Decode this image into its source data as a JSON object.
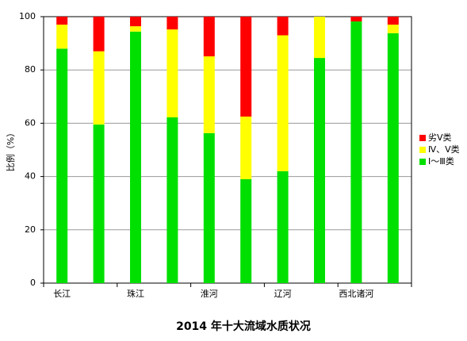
{
  "chart_data": {
    "type": "stacked_bar",
    "title": "2014 年十大流域水质状况",
    "y_label": "比例（%）",
    "categories": [
      "长江",
      null,
      "珠江",
      null,
      "淮河",
      null,
      "辽河",
      null,
      "西北诸河",
      null
    ],
    "series": [
      {
        "name": "Ⅰ～Ⅲ类",
        "color": "#00e000",
        "values": [
          88,
          59.5,
          94.4,
          62.2,
          56.3,
          39,
          42,
          84.5,
          98.2,
          93.8
        ]
      },
      {
        "name": "Ⅳ、Ⅴ类",
        "color": "#ffff00",
        "values": [
          9,
          27.5,
          2,
          33,
          28.8,
          23.5,
          51,
          15.5,
          0,
          3.2
        ]
      },
      {
        "name": "劣Ⅴ类",
        "color": "#ff0000",
        "values": [
          3,
          13,
          3.6,
          4.8,
          14.9,
          37.5,
          7,
          0,
          1.8,
          3
        ]
      }
    ],
    "ylim": [
      0,
      100
    ],
    "yticks": [
      0,
      20,
      40,
      60,
      80,
      100
    ],
    "grid": true,
    "legend": "right"
  }
}
